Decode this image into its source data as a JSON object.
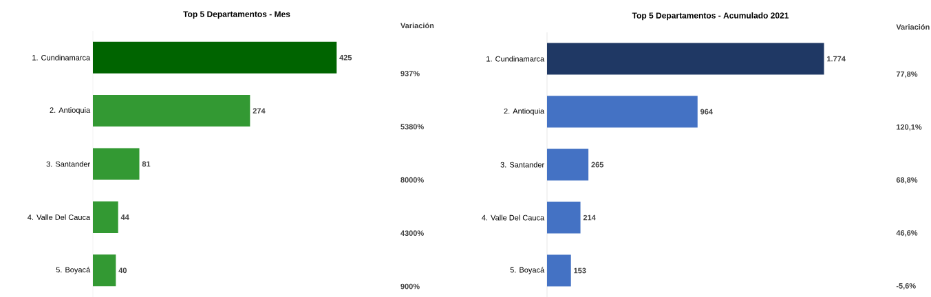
{
  "chart_data": [
    {
      "type": "bar",
      "orientation": "horizontal",
      "title": "Top 5 Departamentos - Mes",
      "categories": [
        "1. Cundinamarca",
        "2. Antioquia",
        "3. Santander",
        "4. Valle Del Cauca",
        "5. Boyacá"
      ],
      "values": [
        425,
        274,
        81,
        44,
        40
      ],
      "value_labels": [
        "425",
        "274",
        "81",
        "44",
        "40"
      ],
      "colors": [
        "#006400",
        "#339933",
        "#339933",
        "#339933",
        "#339933"
      ],
      "annotations": [
        "Variación",
        "937%",
        "5380%",
        "8000%",
        "4300%",
        "900%"
      ]
    },
    {
      "type": "bar",
      "orientation": "horizontal",
      "title": "Top 5 Departamentos - Acumulado 2021",
      "categories": [
        "1. Cundinamarca",
        "2. Antioquia",
        "3. Santander",
        "4. Valle Del Cauca",
        "5. Boyacá"
      ],
      "values": [
        1774,
        964,
        265,
        214,
        153
      ],
      "value_labels": [
        "1.774",
        "964",
        "265",
        "214",
        "153"
      ],
      "colors": [
        "#1f3864",
        "#4472c4",
        "#4472c4",
        "#4472c4",
        "#4472c4"
      ],
      "annotations": [
        "Variación",
        "77,8%",
        "120,1%",
        "68,8%",
        "46,6%",
        "-5,6%"
      ]
    }
  ]
}
